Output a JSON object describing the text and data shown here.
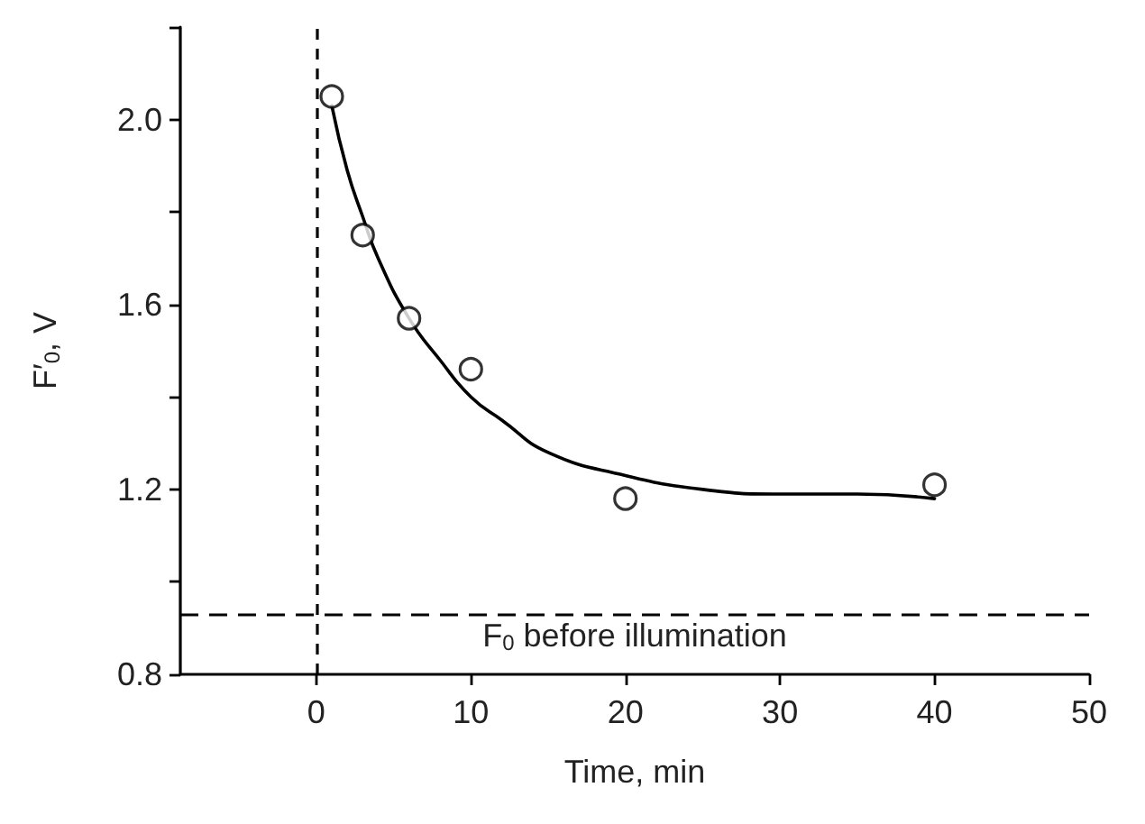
{
  "chart_data": {
    "type": "scatter",
    "xlabel": "Time, min",
    "ylabel": "F′$_{0}$, V",
    "xlim": [
      -8.8,
      50
    ],
    "xticks": [
      0,
      10,
      20,
      30,
      40,
      50
    ],
    "ylim": [
      0.8,
      2.2
    ],
    "yticks": [
      {
        "value": 0.8,
        "label": "0.8"
      },
      {
        "value": 1.0,
        "label": null
      },
      {
        "value": 1.2,
        "label": "1.2"
      },
      {
        "value": 1.4,
        "label": null
      },
      {
        "value": 1.6,
        "label": "1.6"
      },
      {
        "value": 1.8,
        "label": null
      },
      {
        "value": 2.0,
        "label": "2.0"
      },
      {
        "value": 2.2,
        "label": null
      }
    ],
    "grid": false,
    "marker": "circle",
    "series": [
      {
        "color": "#000000",
        "x": [
          1,
          3,
          6,
          10,
          20,
          40
        ],
        "values": [
          2.05,
          1.75,
          1.57,
          1.46,
          1.18,
          1.21
        ]
      },
      {
        "type": "line",
        "color": "#000000",
        "line_style": "solid",
        "marker": "none",
        "x": [
          1,
          2,
          3,
          4,
          6,
          8,
          10,
          12,
          15,
          20,
          25,
          30,
          35,
          40
        ],
        "values": [
          2.03,
          1.89,
          1.79,
          1.7,
          1.57,
          1.48,
          1.4,
          1.35,
          1.28,
          1.23,
          1.2,
          1.19,
          1.19,
          1.18
        ]
      }
    ],
    "ref_lines": [
      {
        "axis": "y",
        "value": 0.925,
        "label": "F$_{0}$ before illumination",
        "line_style": "dashed",
        "color": "#000000"
      },
      {
        "axis": "x",
        "value": 0,
        "label": null,
        "line_style": "dashed",
        "color": "#000000"
      }
    ]
  }
}
